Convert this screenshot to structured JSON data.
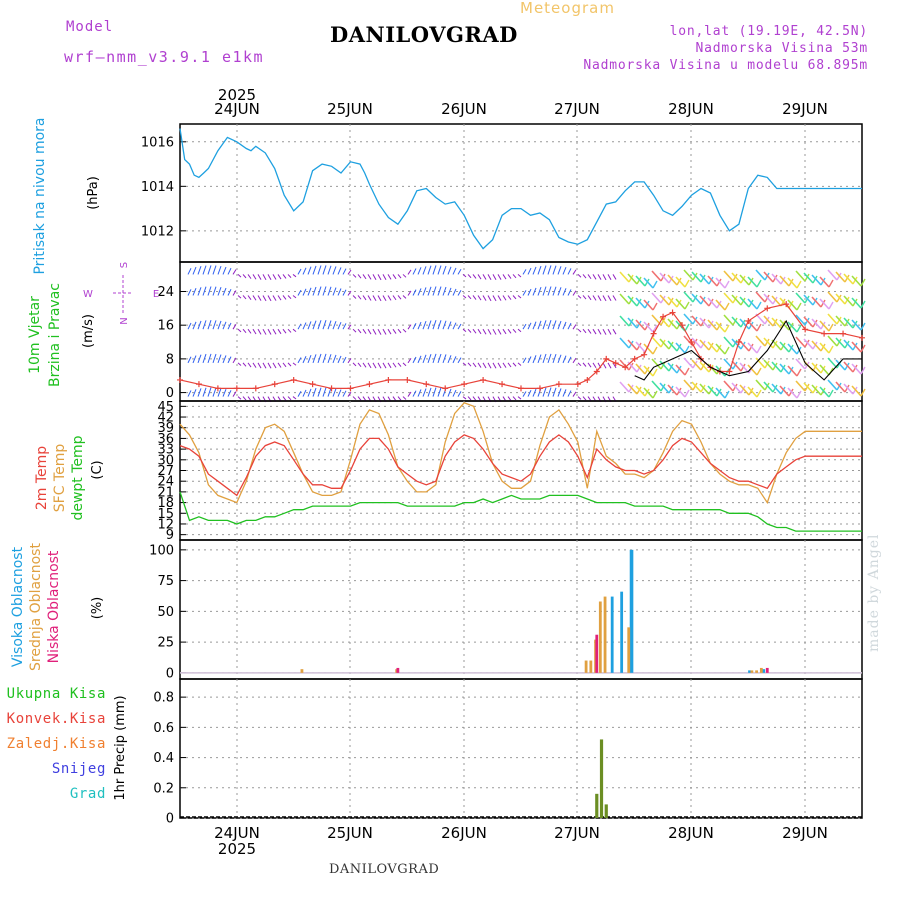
{
  "header": {
    "meteogram_label": "Meteogram",
    "title": "DANILOVGRAD",
    "model_label": "Model",
    "model_name": "wrf–nmm_v3.9.1 e1km",
    "coords": "lon,lat (19.19E, 42.5N)",
    "elevation": "Nadmorska Visina 53m",
    "model_elevation": "Nadmorska Visina u modelu 68.895m"
  },
  "footer": {
    "station": "DANILOVGRAD",
    "watermark": "made by Angel"
  },
  "colors": {
    "pressure": "#1ea0e0",
    "temp2m": "#e8433a",
    "sfc_temp": "#e0a040",
    "dewpt": "#20c020",
    "wind_speed": "#e8433a",
    "wind_gust": "#000000",
    "high_cloud": "#1ea0e0",
    "mid_cloud": "#e0a040",
    "low_cloud": "#e0207a",
    "total_precip": "#20c020",
    "conv_precip": "#e8433a",
    "freezing": "#f08030",
    "snow": "#4040e0",
    "hail": "#20c0c0",
    "purple_text": "#b040d0"
  },
  "chart_data": [
    {
      "type": "line",
      "panel": "pressure",
      "ylabel": "(hPa)",
      "side_label": "Pritisak na nivou mora",
      "x_start_label": "2025",
      "x_ticks": [
        "24JUN",
        "25JUN",
        "26JUN",
        "27JUN",
        "28JUN",
        "29JUN"
      ],
      "yticks": [
        1012,
        1014,
        1016
      ],
      "ylim": [
        1010.6,
        1016.8
      ],
      "xlim": [
        0,
        144
      ],
      "grid": true,
      "series": [
        {
          "x": [
            0,
            1,
            2,
            3,
            4,
            5,
            6,
            8,
            10,
            12,
            14,
            15,
            16,
            18,
            20,
            21,
            22,
            24,
            26,
            28,
            30,
            32,
            34,
            36,
            38,
            39,
            40,
            42,
            44,
            46,
            48,
            50,
            52,
            54,
            56,
            58,
            60,
            62,
            64,
            66,
            68,
            70,
            72,
            74,
            76,
            78,
            80,
            82,
            84,
            86,
            88,
            90,
            92,
            94,
            96,
            98,
            100,
            102,
            104,
            106,
            108,
            110,
            112,
            114,
            116,
            118,
            120,
            122,
            124,
            126,
            128,
            130,
            132,
            134,
            136,
            138,
            140,
            142,
            144
          ],
          "values": [
            1016.6,
            1015.2,
            1015.0,
            1014.5,
            1014.4,
            1014.6,
            1014.8,
            1015.6,
            1016.2,
            1016.0,
            1015.7,
            1015.6,
            1015.8,
            1015.5,
            1014.8,
            1014.2,
            1013.6,
            1012.9,
            1013.3,
            1014.7,
            1015.0,
            1014.9,
            1014.6,
            1015.1,
            1015.0,
            1014.6,
            1014.1,
            1013.2,
            1012.6,
            1012.3,
            1012.9,
            1013.8,
            1013.9,
            1013.5,
            1013.2,
            1013.3,
            1012.7,
            1011.8,
            1011.2,
            1011.6,
            1012.7,
            1013.0,
            1013.0,
            1012.7,
            1012.8,
            1012.5,
            1011.7,
            1011.5,
            1011.4,
            1011.6,
            1012.4,
            1013.2,
            1013.3,
            1013.8,
            1014.2,
            1014.2,
            1013.6,
            1012.9,
            1012.7,
            1013.1,
            1013.6,
            1013.9,
            1013.7,
            1012.7,
            1012.0,
            1012.3,
            1013.9,
            1014.5,
            1014.4,
            1013.9,
            1013.9,
            1013.9,
            1013.9,
            1013.9,
            1013.9,
            1013.9,
            1013.9,
            1013.9,
            1013.9
          ]
        }
      ]
    },
    {
      "type": "line",
      "panel": "wind",
      "ylabel": "(m/s)",
      "side_label": [
        "10m Vjetar",
        "Brzina i Pravac"
      ],
      "compass": {
        "north": "N",
        "west": "W",
        "east": "E",
        "south": "S"
      },
      "yticks": [
        0,
        8,
        16,
        24
      ],
      "ylim": [
        -2,
        31
      ],
      "xlim": [
        0,
        144
      ],
      "grid": true,
      "series": [
        {
          "name": "speed",
          "x": [
            0,
            4,
            8,
            12,
            16,
            20,
            24,
            28,
            32,
            36,
            40,
            44,
            48,
            52,
            56,
            60,
            64,
            68,
            72,
            76,
            80,
            84,
            86,
            88,
            90,
            92,
            94,
            96,
            98,
            100,
            102,
            104,
            106,
            108,
            110,
            112,
            114,
            116,
            118,
            120,
            124,
            128,
            132,
            136,
            140,
            144
          ],
          "values": [
            3,
            2,
            1,
            1,
            1,
            2,
            3,
            2,
            1,
            1,
            2,
            3,
            3,
            2,
            1,
            2,
            3,
            2,
            1,
            1,
            2,
            2,
            3,
            5,
            8,
            7,
            6,
            8,
            9,
            14,
            18,
            19,
            16,
            12,
            8,
            6,
            5,
            5,
            12,
            17,
            20,
            21,
            15,
            14,
            14,
            13
          ]
        },
        {
          "name": "gust",
          "x": [
            96,
            98,
            100,
            104,
            108,
            112,
            116,
            120,
            124,
            128,
            132,
            136,
            140,
            144
          ],
          "values": [
            4,
            3,
            6,
            8,
            10,
            6,
            4,
            5,
            10,
            17,
            7,
            3,
            8,
            8
          ]
        }
      ]
    },
    {
      "type": "line",
      "panel": "temperature",
      "ylabel": "(C)",
      "side_label": [
        "2m Temp",
        "SFC Temp",
        "dewpt Temp"
      ],
      "yticks": [
        9,
        12,
        15,
        18,
        21,
        24,
        27,
        30,
        33,
        36,
        39,
        42,
        45
      ],
      "ylim": [
        7.5,
        46.5
      ],
      "xlim": [
        0,
        144
      ],
      "grid": true,
      "series": [
        {
          "name": "2m Temp",
          "x": [
            0,
            2,
            4,
            6,
            8,
            10,
            12,
            14,
            16,
            18,
            20,
            22,
            24,
            26,
            28,
            30,
            32,
            34,
            36,
            38,
            40,
            42,
            44,
            46,
            48,
            50,
            52,
            54,
            56,
            58,
            60,
            62,
            64,
            66,
            68,
            70,
            72,
            74,
            76,
            78,
            80,
            82,
            84,
            86,
            88,
            90,
            92,
            94,
            96,
            98,
            100,
            102,
            104,
            106,
            108,
            110,
            112,
            114,
            116,
            118,
            120,
            122,
            124,
            126,
            128,
            130,
            132,
            134,
            136,
            138,
            140,
            142,
            144
          ],
          "values": [
            34,
            33,
            31,
            26,
            24,
            22,
            20,
            25,
            31,
            34,
            35,
            34,
            30,
            26,
            23,
            23,
            22,
            22,
            27,
            33,
            36,
            36,
            33,
            28,
            26,
            24,
            23,
            24,
            31,
            35,
            37,
            36,
            33,
            29,
            26,
            25,
            24,
            26,
            31,
            35,
            37,
            35,
            31,
            25,
            33,
            30,
            28,
            27,
            27,
            26,
            27,
            30,
            34,
            36,
            35,
            32,
            29,
            27,
            25,
            24,
            24,
            23,
            22,
            26,
            28,
            30,
            31,
            31,
            31,
            31,
            31,
            31,
            31
          ]
        },
        {
          "name": "SFC Temp",
          "x": [
            0,
            2,
            4,
            6,
            8,
            10,
            12,
            14,
            16,
            18,
            20,
            22,
            24,
            26,
            28,
            30,
            32,
            34,
            36,
            38,
            40,
            42,
            44,
            46,
            48,
            50,
            52,
            54,
            56,
            58,
            60,
            62,
            64,
            66,
            68,
            70,
            72,
            74,
            76,
            78,
            80,
            82,
            84,
            86,
            88,
            90,
            92,
            94,
            96,
            98,
            100,
            102,
            104,
            106,
            108,
            110,
            112,
            114,
            116,
            118,
            120,
            122,
            124,
            126,
            128,
            130,
            132,
            134,
            136,
            138,
            140,
            142,
            144
          ],
          "values": [
            40,
            37,
            32,
            23,
            20,
            19,
            18,
            24,
            33,
            39,
            40,
            38,
            32,
            26,
            21,
            20,
            20,
            21,
            30,
            40,
            44,
            43,
            37,
            28,
            24,
            21,
            21,
            23,
            35,
            43,
            46,
            45,
            38,
            29,
            24,
            22,
            22,
            24,
            34,
            42,
            44,
            40,
            35,
            22,
            38,
            31,
            29,
            26,
            26,
            25,
            27,
            32,
            38,
            41,
            40,
            35,
            29,
            26,
            24,
            23,
            23,
            22,
            18,
            26,
            32,
            36,
            38,
            38,
            38,
            38,
            38,
            38,
            38
          ]
        },
        {
          "name": "dewpt Temp",
          "x": [
            0,
            2,
            4,
            6,
            8,
            10,
            12,
            14,
            16,
            18,
            20,
            22,
            24,
            26,
            28,
            30,
            32,
            34,
            36,
            38,
            40,
            42,
            44,
            46,
            48,
            50,
            52,
            54,
            56,
            58,
            60,
            62,
            64,
            66,
            68,
            70,
            72,
            74,
            76,
            78,
            80,
            82,
            84,
            86,
            88,
            90,
            92,
            94,
            96,
            98,
            100,
            102,
            104,
            106,
            108,
            110,
            112,
            114,
            116,
            118,
            120,
            122,
            124,
            126,
            128,
            130,
            132,
            134,
            136,
            138,
            140,
            142,
            144
          ],
          "values": [
            21,
            13,
            14,
            13,
            13,
            13,
            12,
            13,
            13,
            14,
            14,
            15,
            16,
            16,
            17,
            17,
            17,
            17,
            17,
            18,
            18,
            18,
            18,
            18,
            17,
            17,
            17,
            17,
            17,
            17,
            18,
            18,
            19,
            18,
            19,
            20,
            19,
            19,
            19,
            20,
            20,
            20,
            20,
            19,
            18,
            18,
            18,
            18,
            17,
            17,
            17,
            17,
            16,
            16,
            16,
            16,
            16,
            16,
            15,
            15,
            15,
            14,
            12,
            11,
            11,
            10,
            10,
            10,
            10,
            10,
            10,
            10,
            10
          ]
        }
      ]
    },
    {
      "type": "bar",
      "panel": "clouds",
      "ylabel": "(%)",
      "side_label": [
        "Visoka Oblacnost",
        "Srednja Oblacnost",
        "Niska Oblacnost"
      ],
      "yticks": [
        0,
        25,
        50,
        75,
        100
      ],
      "ylim": [
        -5,
        108
      ],
      "xlim": [
        0,
        144
      ],
      "grid": true,
      "series": [
        {
          "name": "Visoka Oblacnost",
          "x": [
            86,
            87,
            88,
            89,
            90,
            91,
            92,
            93,
            94,
            95,
            96,
            120,
            121,
            122,
            123,
            124
          ],
          "values": [
            0,
            0,
            0,
            0,
            0,
            62,
            0,
            66,
            0,
            100,
            0,
            2,
            0,
            0,
            3,
            0
          ]
        },
        {
          "name": "Srednja Oblacnost",
          "x": [
            26,
            46,
            86,
            87,
            88,
            89,
            90,
            91,
            92,
            93,
            94,
            95,
            96,
            121,
            122,
            123
          ],
          "values": [
            3,
            3,
            10,
            10,
            27,
            58,
            62,
            0,
            0,
            0,
            0,
            37,
            0,
            2,
            2,
            4
          ]
        },
        {
          "name": "Niska Oblacnost",
          "x": [
            46,
            87,
            88,
            89,
            90,
            91,
            92,
            93,
            124
          ],
          "values": [
            4,
            0,
            31,
            0,
            0,
            0,
            0,
            0,
            4
          ]
        }
      ]
    },
    {
      "type": "bar",
      "panel": "precipitation",
      "ylabel": "1hr Precip (mm)",
      "legend": [
        "Ukupna Kisa",
        "Konvek.Kisa",
        "Zaledj.Kisa",
        "Snijeg",
        "Grad"
      ],
      "yticks": [
        0,
        0.2,
        0.4,
        0.6,
        0.8
      ],
      "ylim": [
        0,
        0.92
      ],
      "xlim": [
        0,
        144
      ],
      "grid": true,
      "x_end_label": "2025",
      "series": [
        {
          "name": "Ukupna Kisa",
          "x": [
            88,
            89,
            90
          ],
          "values": [
            0.16,
            0.52,
            0.09
          ]
        }
      ]
    }
  ]
}
